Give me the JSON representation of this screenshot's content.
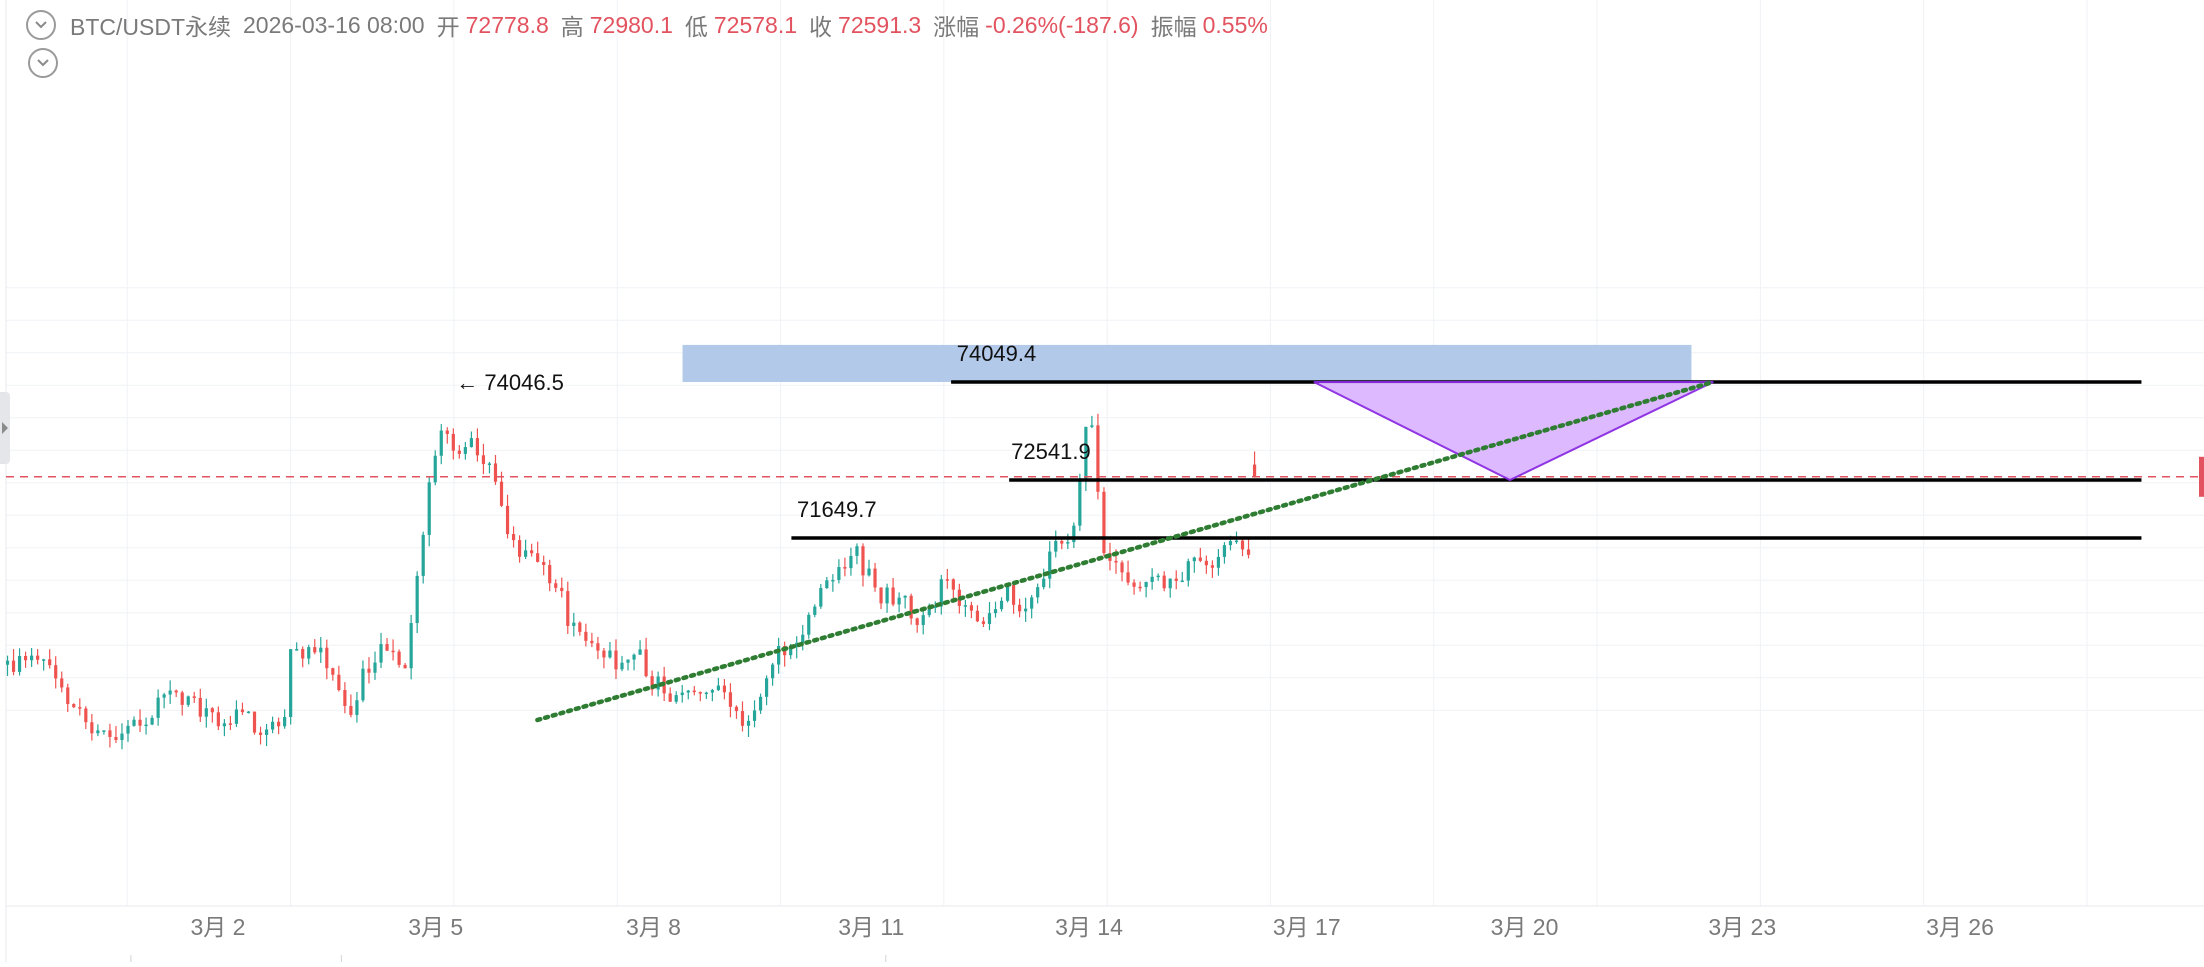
{
  "header": {
    "symbol": "BTC/USDT永续",
    "datetime": "2026-03-16 08:00",
    "open_label": "开",
    "open_value": "72778.8",
    "high_label": "高",
    "high_value": "72980.1",
    "low_label": "低",
    "low_value": "72578.1",
    "close_label": "收",
    "close_value": "72591.3",
    "change_label": "涨幅",
    "change_value": "-0.26%(-187.6)",
    "amplitude_label": "振幅",
    "amplitude_value": "0.55%"
  },
  "colors": {
    "up": "#26a69a",
    "down": "#ef5350",
    "header_value": "#e2535f",
    "text": "#7a7a7a",
    "grid": "#f0f2f5",
    "last_price_line": "#e2535f",
    "zone_fill": "#aec6e8",
    "triangle_fill": "#dcb6ff",
    "triangle_stroke": "#8a2be2",
    "trendline": "#2e7d32",
    "level_line": "#000000"
  },
  "chart_data": {
    "type": "candlestick",
    "title": "",
    "xlabel": "",
    "ylabel": "",
    "x_unit": "day of March 2026",
    "x_tick_labels": [
      {
        "label": "3月 2",
        "day": 2
      },
      {
        "label": "3月 5",
        "day": 5
      },
      {
        "label": "3月 8",
        "day": 8
      },
      {
        "label": "3月 11",
        "day": 11
      },
      {
        "label": "3月 14",
        "day": 14
      },
      {
        "label": "3月 17",
        "day": 17
      },
      {
        "label": "3月 20",
        "day": 20
      },
      {
        "label": "3月 23",
        "day": 23
      },
      {
        "label": "3月 26",
        "day": 26
      }
    ],
    "x_visible_range": [
      -0.9,
      28.5
    ],
    "y_visible_range": [
      68850,
      75600
    ],
    "grid": true,
    "y_axis_labels_shown": false,
    "last_price": 72591.3,
    "candle_anchors": [
      [
        -0.9,
        69700
      ],
      [
        -0.5,
        69900
      ],
      [
        -0.2,
        69500
      ],
      [
        0.1,
        68900
      ],
      [
        0.4,
        68700
      ],
      [
        0.9,
        68700
      ],
      [
        1.0,
        68800
      ],
      [
        1.3,
        69450
      ],
      [
        1.6,
        69100
      ],
      [
        2.0,
        68800
      ],
      [
        2.3,
        68950
      ],
      [
        2.6,
        68650
      ],
      [
        2.9,
        68800
      ],
      [
        3.0,
        69800
      ],
      [
        3.3,
        70000
      ],
      [
        3.6,
        69500
      ],
      [
        3.8,
        68800
      ],
      [
        4.0,
        69600
      ],
      [
        4.3,
        70000
      ],
      [
        4.6,
        69700
      ],
      [
        4.75,
        71050
      ],
      [
        4.9,
        72500
      ],
      [
        5.1,
        73400
      ],
      [
        5.3,
        72900
      ],
      [
        5.5,
        73150
      ],
      [
        5.7,
        72800
      ],
      [
        5.9,
        72100
      ],
      [
        6.1,
        71550
      ],
      [
        6.4,
        71250
      ],
      [
        6.7,
        70800
      ],
      [
        6.9,
        70200
      ],
      [
        7.1,
        70050
      ],
      [
        7.5,
        69700
      ],
      [
        7.8,
        69950
      ],
      [
        8.0,
        69400
      ],
      [
        8.4,
        69150
      ],
      [
        8.7,
        69450
      ],
      [
        9.0,
        69100
      ],
      [
        9.3,
        68850
      ],
      [
        9.6,
        69700
      ],
      [
        9.9,
        70100
      ],
      [
        10.2,
        70500
      ],
      [
        10.5,
        71200
      ],
      [
        10.8,
        71400
      ],
      [
        11.1,
        70800
      ],
      [
        11.4,
        70700
      ],
      [
        11.7,
        70400
      ],
      [
        12.0,
        70950
      ],
      [
        12.3,
        70600
      ],
      [
        12.6,
        70400
      ],
      [
        12.9,
        70800
      ],
      [
        13.2,
        70550
      ],
      [
        13.5,
        71600
      ],
      [
        13.8,
        71700
      ],
      [
        13.9,
        72700
      ],
      [
        14.0,
        73600
      ],
      [
        14.1,
        72700
      ],
      [
        14.2,
        71400
      ],
      [
        14.5,
        71100
      ],
      [
        14.8,
        70900
      ],
      [
        15.1,
        70950
      ],
      [
        15.4,
        71200
      ],
      [
        15.7,
        71250
      ],
      [
        15.9,
        71500
      ],
      [
        16.1,
        71600
      ],
      [
        16.2,
        71400
      ],
      [
        16.3,
        72591.3
      ]
    ],
    "levels": [
      {
        "label": "74049.4",
        "price": 74049.4,
        "from_day": 12.1,
        "to_day": 28.5
      },
      {
        "label": "72541.9",
        "price": 72541.9,
        "from_day": 12.9,
        "to_day": 28.5
      },
      {
        "label": "71649.7",
        "price": 71649.7,
        "from_day": 9.9,
        "to_day": 28.5
      }
    ],
    "annotations": [
      {
        "type": "high_marker",
        "text": "← 74046.5",
        "day": 5.2,
        "price": 74046.5
      }
    ],
    "zones": [
      {
        "type": "rectangle",
        "from_day": 8.4,
        "to_day": 22.3,
        "price_low": 74049.4,
        "price_high": 74620
      }
    ],
    "triangle": [
      [
        17.1,
        74049.4
      ],
      [
        22.6,
        74049.4
      ],
      [
        19.8,
        72541.9
      ]
    ],
    "trendline": {
      "from": [
        6.4,
        68850
      ],
      "to": [
        22.6,
        74049.4
      ]
    }
  }
}
